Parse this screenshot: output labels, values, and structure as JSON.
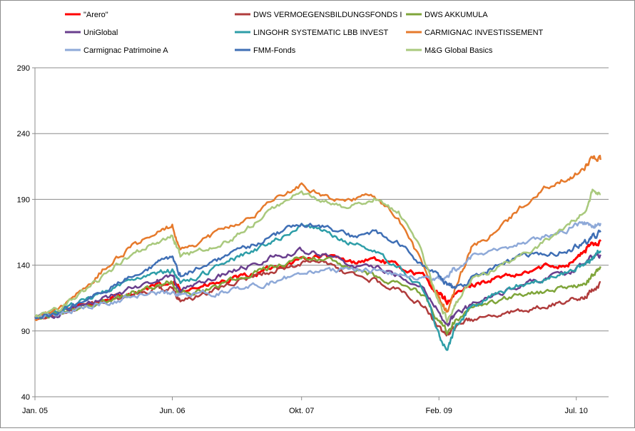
{
  "chart_data": {
    "type": "line",
    "title": "",
    "xlabel": "",
    "ylabel": "",
    "ylim": [
      40,
      290
    ],
    "y_ticks": [
      40,
      90,
      140,
      190,
      240,
      290
    ],
    "grid": true,
    "legend_position": "top",
    "x_tick_labels": [
      "Jan. 05",
      "Jun. 06",
      "Okt. 07",
      "Feb. 09",
      "Jul. 10"
    ],
    "x_range_months": [
      0,
      71
    ],
    "x_months": [
      0,
      3,
      6,
      9,
      12,
      15,
      17,
      18,
      21,
      24,
      27,
      30,
      33,
      36,
      39,
      42,
      45,
      48,
      50,
      51,
      52,
      54,
      57,
      60,
      63,
      66,
      68,
      69,
      70
    ],
    "x_tick_months": [
      0,
      17,
      33,
      50,
      67
    ],
    "series": [
      {
        "name": "\"Arero\"",
        "color": "#ff0000",
        "width": 3,
        "values": [
          100,
          103,
          110,
          114,
          119,
          124,
          126,
          122,
          124,
          128,
          133,
          139,
          145,
          147,
          142,
          145,
          139,
          132,
          118,
          112,
          117,
          125,
          130,
          132,
          139,
          141,
          150,
          157,
          158
        ]
      },
      {
        "name": "DWS VERMOEGENSBILDUNGSFONDS  I",
        "color": "#b03c3c",
        "width": 2.5,
        "values": [
          100,
          104,
          110,
          113,
          117,
          121,
          122,
          113,
          118,
          125,
          131,
          137,
          141,
          142,
          132,
          128,
          121,
          110,
          92,
          85,
          93,
          98,
          103,
          106,
          108,
          112,
          115,
          121,
          127
        ]
      },
      {
        "name": "DWS AKKUMULA",
        "color": "#7fa53a",
        "width": 2.5,
        "values": [
          100,
          103,
          109,
          113,
          118,
          124,
          127,
          118,
          121,
          128,
          134,
          140,
          146,
          145,
          137,
          132,
          126,
          118,
          98,
          90,
          98,
          107,
          113,
          118,
          120,
          123,
          126,
          132,
          139
        ]
      },
      {
        "name": "UniGlobal",
        "color": "#6a3f8e",
        "width": 2.5,
        "values": [
          100,
          103,
          110,
          116,
          122,
          128,
          131,
          121,
          127,
          134,
          141,
          147,
          151,
          149,
          140,
          138,
          133,
          124,
          104,
          95,
          102,
          110,
          118,
          124,
          130,
          134,
          141,
          146,
          148
        ]
      },
      {
        "name": "LINGOHR SYSTEMATIC  LBB INVEST",
        "color": "#2e9ea8",
        "width": 2.5,
        "values": [
          100,
          105,
          113,
          121,
          127,
          133,
          136,
          126,
          134,
          143,
          151,
          160,
          171,
          166,
          157,
          150,
          138,
          122,
          88,
          75,
          92,
          108,
          118,
          125,
          129,
          134,
          140,
          145,
          151
        ]
      },
      {
        "name": "CARMIGNAC  INVESTISSEMENT",
        "color": "#e67a2c",
        "width": 2.5,
        "values": [
          100,
          106,
          122,
          140,
          154,
          164,
          171,
          151,
          159,
          168,
          177,
          191,
          201,
          192,
          189,
          193,
          175,
          140,
          114,
          104,
          122,
          153,
          165,
          183,
          199,
          207,
          212,
          224,
          220
        ]
      },
      {
        "name": "Carmignac Patrimoine  A",
        "color": "#8ea9d8",
        "width": 2.5,
        "values": [
          100,
          103,
          108,
          112,
          116,
          118,
          119,
          117,
          118,
          120,
          124,
          128,
          134,
          136,
          136,
          137,
          133,
          130,
          130,
          131,
          137,
          146,
          152,
          156,
          162,
          167,
          172,
          170,
          172
        ]
      },
      {
        "name": "FMM-Fonds",
        "color": "#3f6fb5",
        "width": 2.5,
        "values": [
          100,
          104,
          112,
          122,
          131,
          140,
          147,
          132,
          140,
          148,
          156,
          164,
          172,
          169,
          162,
          165,
          156,
          140,
          131,
          127,
          121,
          130,
          139,
          146,
          148,
          151,
          157,
          161,
          165
        ]
      },
      {
        "name": "M&G Global Basics",
        "color": "#a9c97d",
        "width": 2.5,
        "values": [
          100,
          106,
          120,
          135,
          148,
          158,
          163,
          147,
          152,
          158,
          171,
          186,
          195,
          188,
          183,
          191,
          180,
          148,
          112,
          98,
          110,
          128,
          138,
          146,
          158,
          170,
          180,
          196,
          194
        ]
      }
    ]
  }
}
